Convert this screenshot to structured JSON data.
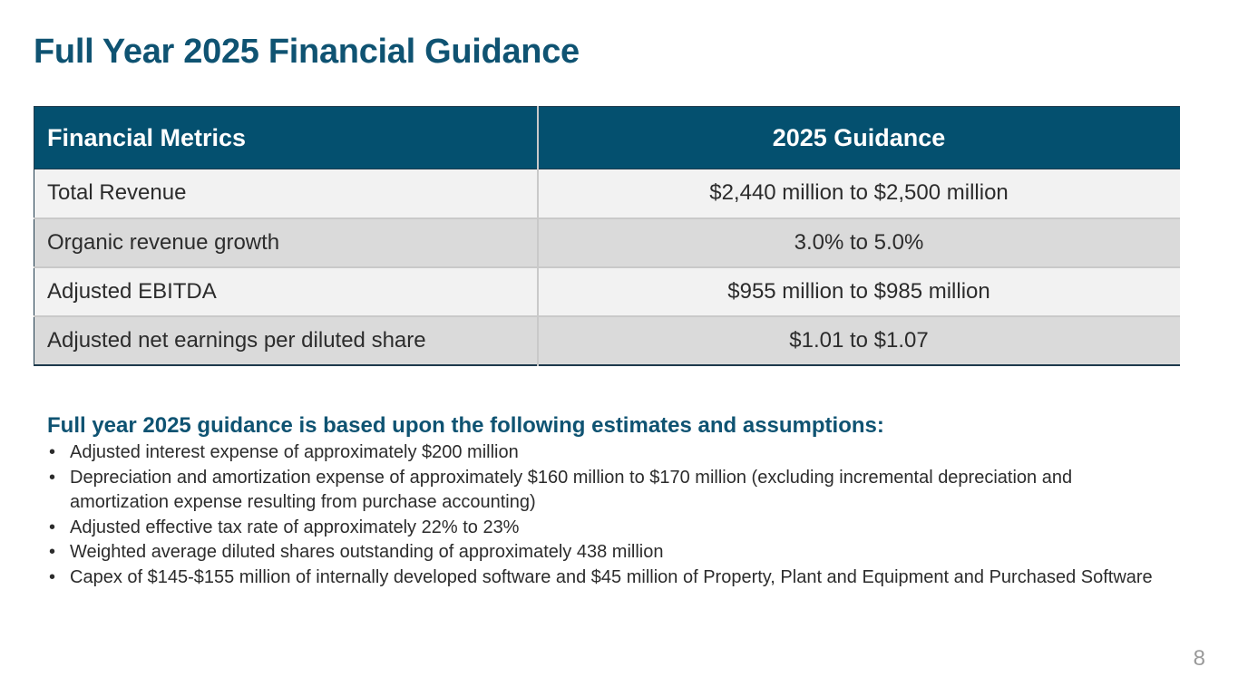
{
  "slide": {
    "title": "Full Year 2025 Financial Guidance",
    "page_number": "8"
  },
  "table": {
    "headers": [
      "Financial Metrics",
      "2025 Guidance"
    ],
    "rows": [
      {
        "metric": "Total Revenue",
        "guidance": "$2,440 million to $2,500 million"
      },
      {
        "metric": "Organic revenue growth",
        "guidance": "3.0% to 5.0%"
      },
      {
        "metric": "Adjusted EBITDA",
        "guidance": "$955 million to $985 million"
      },
      {
        "metric": "Adjusted net earnings per diluted share",
        "guidance": "$1.01 to $1.07"
      }
    ]
  },
  "assumptions": {
    "heading": "Full year 2025 guidance is based upon the following estimates and assumptions:",
    "bullet_symbol": "•",
    "items": [
      "Adjusted interest expense of approximately $200 million",
      "Depreciation and amortization expense of approximately $160 million to $170 million (excluding incremental depreciation and amortization expense resulting from purchase accounting)",
      "Adjusted effective tax rate of approximately 22% to 23%",
      "Weighted average diluted shares outstanding of approximately 438 million",
      "Capex of $145-$155 million of internally developed software and $45 million of Property, Plant and Equipment and Purchased Software"
    ]
  },
  "colors": {
    "brand_blue": "#0f5372",
    "header_bg": "#04506f",
    "row_light": "#f2f2f2",
    "row_dark": "#dadada"
  }
}
